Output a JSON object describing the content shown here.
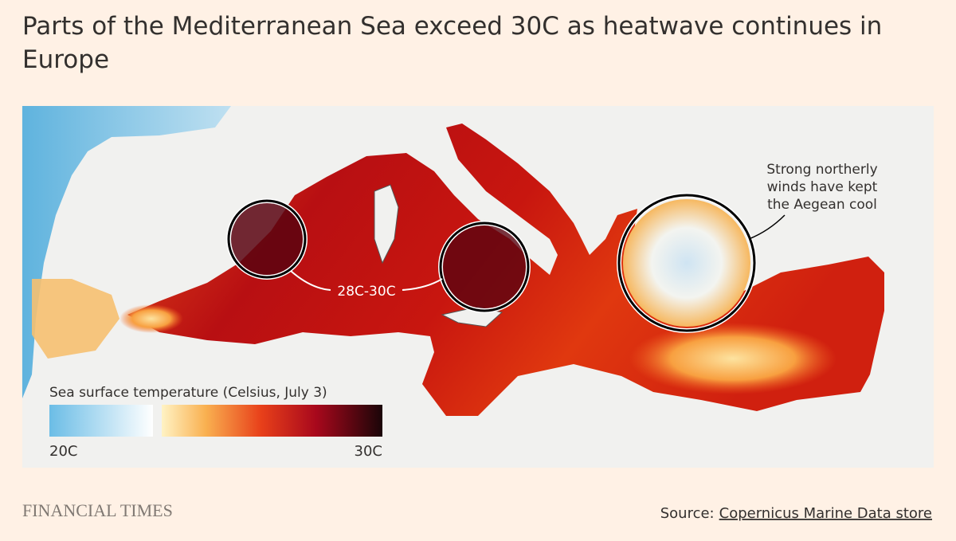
{
  "title": "Parts of the Mediterranean Sea exceed 30C as heatwave continues in Europe",
  "map": {
    "annotations": {
      "aegean": [
        "Strong northerly",
        "winds have kept",
        "the Aegean cool"
      ],
      "hot_zones": "28C-30C"
    },
    "legend": {
      "title": "Sea surface temperature (Celsius, July 3)",
      "min_label": "20C",
      "max_label": "30C"
    }
  },
  "footer": {
    "brand": "FINANCIAL TIMES",
    "source_prefix": "Source:",
    "source_link": "Copernicus Marine Data store"
  }
}
